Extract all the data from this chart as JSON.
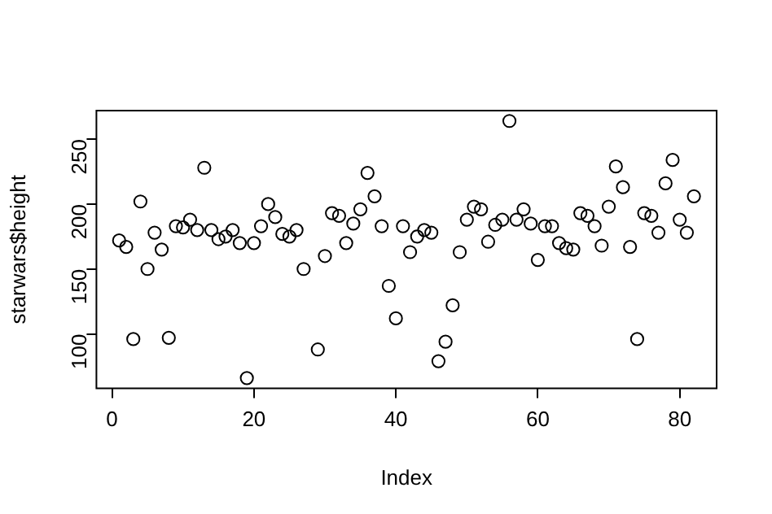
{
  "chart_data": {
    "type": "scatter",
    "xlabel": "Index",
    "ylabel": "starwars$height",
    "x": [
      1,
      2,
      3,
      4,
      5,
      6,
      7,
      8,
      9,
      10,
      11,
      12,
      13,
      14,
      15,
      16,
      17,
      18,
      19,
      20,
      21,
      22,
      23,
      24,
      25,
      26,
      27,
      28,
      29,
      30,
      31,
      32,
      33,
      34,
      35,
      36,
      37,
      38,
      39,
      40,
      41,
      42,
      43,
      44,
      45,
      46,
      47,
      48,
      49,
      50,
      51,
      52,
      53,
      54,
      55,
      56,
      57,
      58,
      59,
      60,
      61,
      62,
      63,
      64,
      65,
      66,
      67,
      68,
      69,
      70,
      71,
      72,
      73,
      74,
      75,
      76,
      77,
      78,
      79,
      80,
      81,
      82
    ],
    "series": [
      {
        "color": "#000000",
        "values": [
          172,
          167,
          96,
          202,
          150,
          178,
          165,
          97,
          183,
          182,
          188,
          180,
          228,
          180,
          173,
          175,
          180,
          170,
          66,
          170,
          183,
          200,
          190,
          177,
          175,
          180,
          150,
          null,
          88,
          160,
          193,
          191,
          170,
          185,
          196,
          224,
          206,
          183,
          137,
          112,
          183,
          163,
          175,
          180,
          178,
          79,
          94,
          122,
          163,
          188,
          198,
          196,
          171,
          184,
          188,
          264,
          188,
          196,
          185,
          157,
          183,
          183,
          170,
          166,
          165,
          193,
          191,
          183,
          168,
          198,
          229,
          213,
          167,
          96,
          193,
          191,
          178,
          216,
          234,
          188,
          178,
          206
        ]
      }
    ],
    "marker": "circle",
    "grid": false,
    "legend": false,
    "xlim": [
      -2.2,
      85.2
    ],
    "ylim": [
      58,
      272
    ],
    "xticks": [
      0,
      20,
      40,
      60,
      80
    ],
    "yticks": [
      100,
      150,
      200,
      250
    ]
  }
}
